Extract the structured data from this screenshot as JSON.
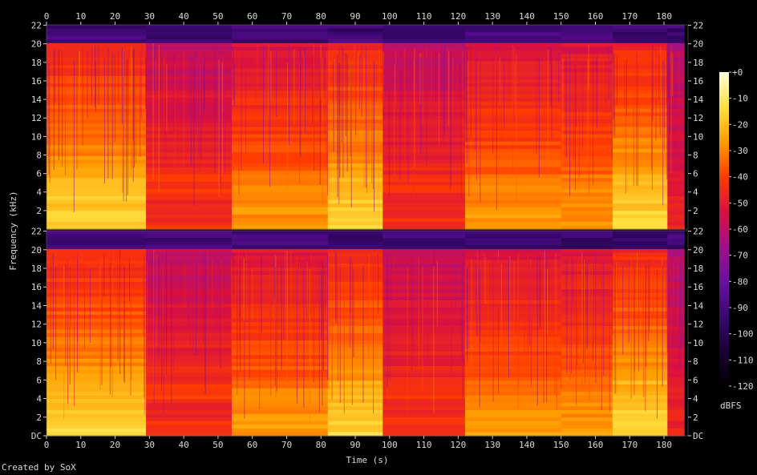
{
  "chart_data": {
    "type": "heatmap",
    "subtype": "spectrogram",
    "channels": 2,
    "xlabel": "Time (s)",
    "ylabel": "Frequency (kHz)",
    "colorbar_label": "dBFS",
    "x_ticks": [
      "0",
      "10",
      "20",
      "30",
      "40",
      "50",
      "60",
      "70",
      "80",
      "90",
      "100",
      "110",
      "120",
      "130",
      "140",
      "150",
      "160",
      "170",
      "180"
    ],
    "y_ticks_top_channel": [
      "22",
      "20",
      "18",
      "16",
      "14",
      "12",
      "10",
      "8",
      "6",
      "4",
      "2"
    ],
    "y_ticks_bottom_channel": [
      "22",
      "20",
      "18",
      "16",
      "14",
      "12",
      "10",
      "8",
      "6",
      "4",
      "2",
      "DC"
    ],
    "colorbar_ticks": [
      "+0",
      "-10",
      "-20",
      "-30",
      "-40",
      "-50",
      "-60",
      "-70",
      "-80",
      "-90",
      "-100",
      "-110",
      "-120"
    ],
    "xlim": [
      0,
      187
    ],
    "ylim_khz": [
      0,
      22.05
    ],
    "colorbar_range_dbfs": [
      -120,
      0
    ],
    "content_cutoff_khz": 20,
    "audio_end_s": 186,
    "segments": [
      {
        "start_s": 0,
        "end_s": 29,
        "level": "loud"
      },
      {
        "start_s": 29,
        "end_s": 54,
        "level": "quiet"
      },
      {
        "start_s": 54,
        "end_s": 82,
        "level": "medium"
      },
      {
        "start_s": 82,
        "end_s": 98,
        "level": "loud"
      },
      {
        "start_s": 98,
        "end_s": 122,
        "level": "quiet"
      },
      {
        "start_s": 122,
        "end_s": 150,
        "level": "medium"
      },
      {
        "start_s": 150,
        "end_s": 165,
        "level": "medium"
      },
      {
        "start_s": 165,
        "end_s": 181,
        "level": "loud"
      },
      {
        "start_s": 181,
        "end_s": 186,
        "level": "fade"
      }
    ],
    "colors": {
      "background": "#000000",
      "text": "#d8d8d8",
      "colormap": [
        "#000000",
        "#1a0036",
        "#3a0870",
        "#6a10a0",
        "#a0108a",
        "#d81040",
        "#ff3c00",
        "#ff9c00",
        "#ffe040",
        "#ffffe0"
      ]
    }
  },
  "footer": {
    "credit": "Created by SoX"
  }
}
